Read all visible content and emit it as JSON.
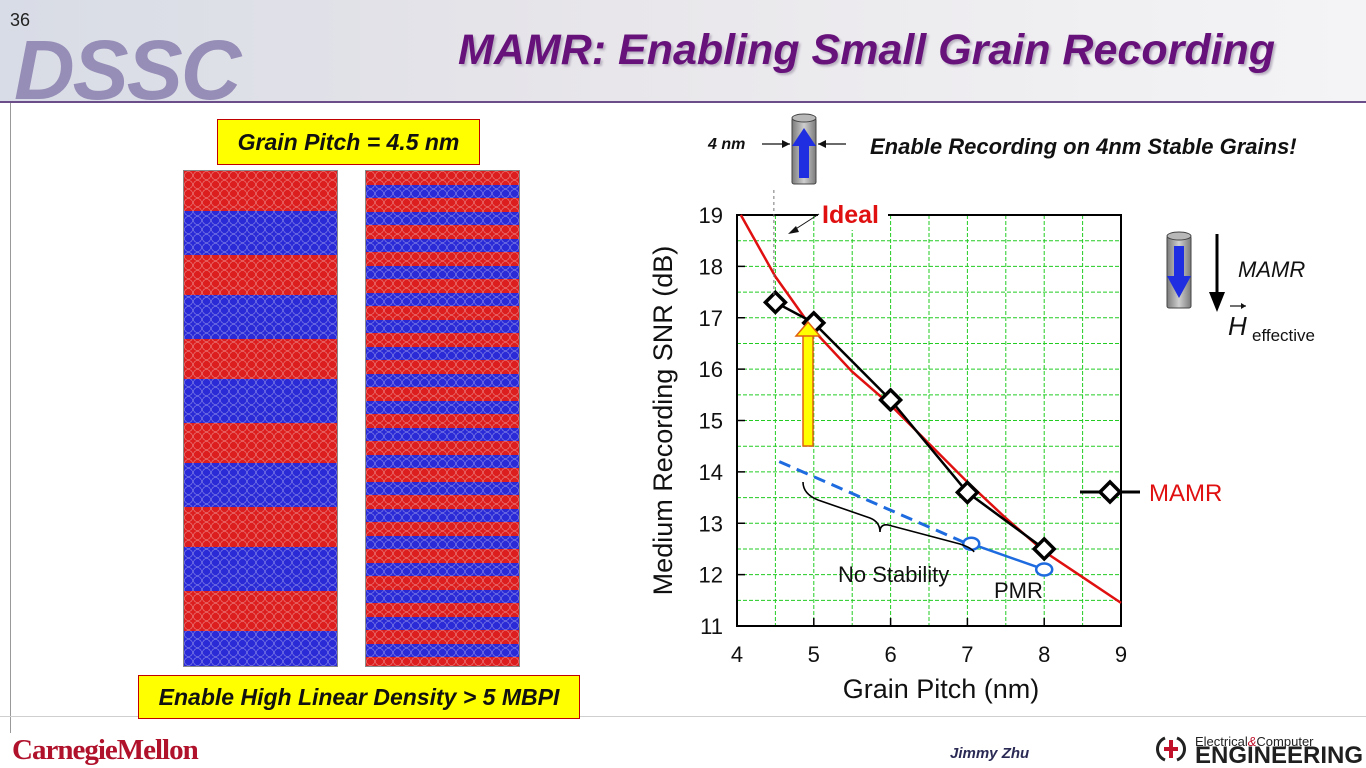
{
  "slide": {
    "number": "36",
    "logo": "DSSC",
    "title": "MAMR: Enabling Small Grain Recording",
    "grain_pitch_label": "Grain Pitch = 4.5 nm",
    "density_label": "Enable High Linear Density > 5 MBPI",
    "grain_size_label": "4 nm",
    "headline": "Enable Recording on 4nm Stable Grains!",
    "field_label": "MAMR",
    "field_symbol": "H",
    "field_subscript": "effective",
    "footer": {
      "university": "CarnegieMellon",
      "author": "Jimmy Zhu",
      "dept_line1": "Electrical",
      "dept_amp": "&",
      "dept_line1b": "Computer",
      "dept_line2": "ENGINEERING"
    }
  },
  "colors": {
    "title": "#66127a",
    "ideal_curve": "#e01010",
    "mamr_series": "#000000",
    "pmr_series": "#1e6be0",
    "grid": "#22cc22",
    "highlight_box": "#ffff00",
    "grain_red": "#dc1e1e",
    "grain_blue": "#2a2ad6"
  },
  "chart_data": {
    "type": "line",
    "xlabel": "Grain Pitch   (nm)",
    "ylabel": "Medium Recording SNR (dB)",
    "xlim": [
      4,
      9
    ],
    "ylim": [
      11,
      19
    ],
    "xticks": [
      4,
      5,
      6,
      7,
      8,
      9
    ],
    "yticks": [
      11,
      12,
      13,
      14,
      15,
      16,
      17,
      18,
      19
    ],
    "grid": true,
    "series": [
      {
        "name": "MAMR",
        "marker": "diamond",
        "x": [
          4.5,
          5,
          6,
          7,
          8
        ],
        "y": [
          17.3,
          16.9,
          15.4,
          13.6,
          12.5
        ]
      },
      {
        "name": "PMR",
        "marker": "ellipse",
        "x": [
          7.05,
          8.0
        ],
        "y": [
          12.6,
          12.1
        ]
      },
      {
        "name": "Ideal",
        "marker": "none",
        "x": [
          4.05,
          4.5,
          5,
          5.5,
          6,
          6.5,
          7,
          7.5,
          8,
          8.5,
          9
        ],
        "y": [
          19.0,
          17.8,
          16.75,
          15.95,
          15.3,
          14.55,
          13.8,
          13.1,
          12.45,
          11.95,
          11.45
        ]
      }
    ],
    "extrapolation": {
      "x": [
        4.55,
        7.0
      ],
      "y": [
        14.2,
        12.6
      ]
    },
    "annotations": {
      "ideal": "Ideal",
      "no_stability": "No Stability",
      "pmr": "PMR",
      "legend_mamr": "MAMR"
    }
  }
}
